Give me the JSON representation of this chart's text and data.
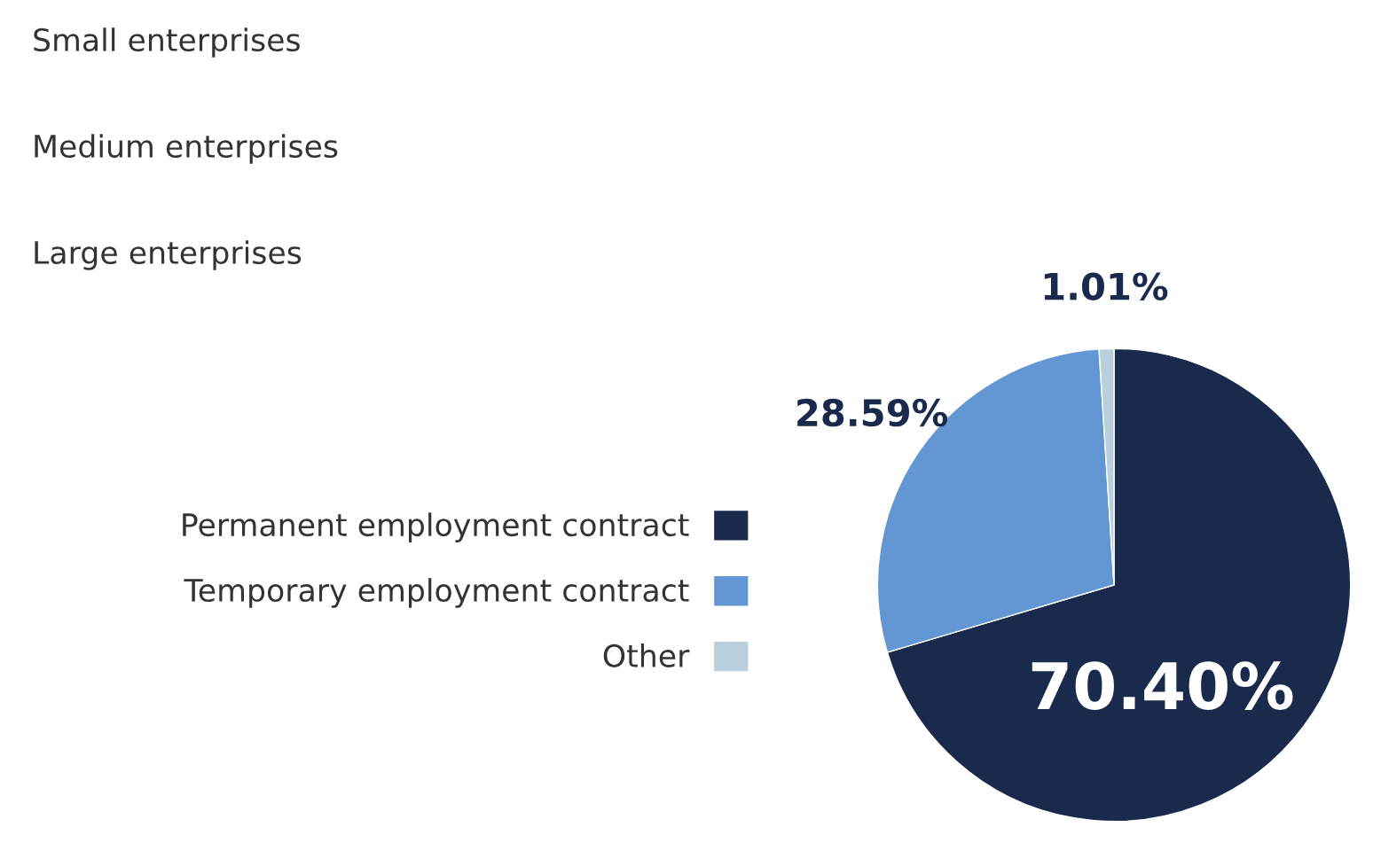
{
  "chart_data": {
    "type": "pie",
    "categories": [
      "Permanent employment contract",
      "Temporary employment contract",
      "Other"
    ],
    "values": [
      70.4,
      28.59,
      1.01
    ],
    "colors": [
      "#1a2a4d",
      "#6397d4",
      "#b9cfdc"
    ],
    "value_labels": [
      "70.40%",
      "28.59%",
      "1.01%"
    ],
    "legend": "left",
    "annotations": [
      "Small enterprises",
      "Medium enterprises",
      "Large enterprises"
    ]
  }
}
